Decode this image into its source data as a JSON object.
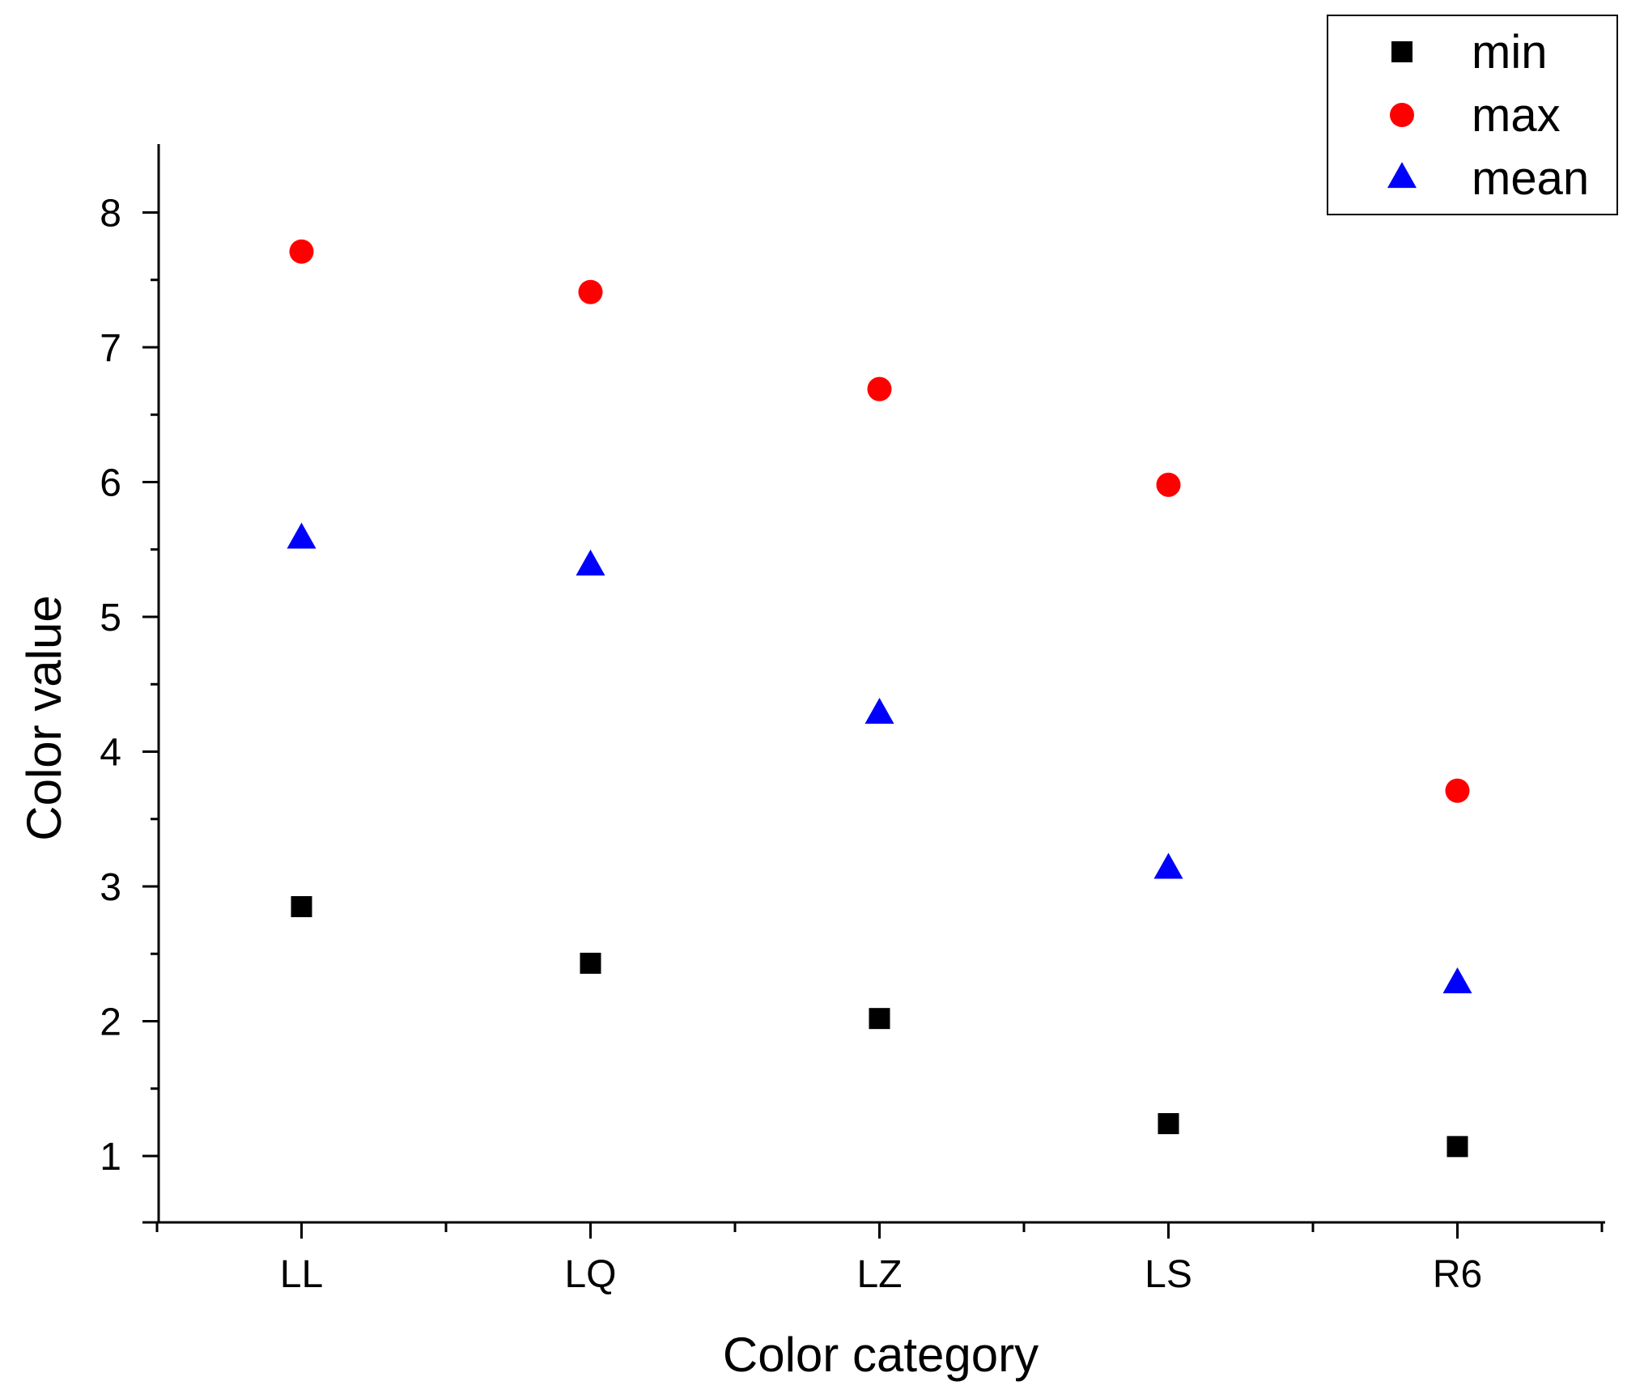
{
  "chart_data": {
    "type": "scatter",
    "categories": [
      "LL",
      "LQ",
      "LZ",
      "LS",
      "R6"
    ],
    "series": [
      {
        "name": "min",
        "marker": "square",
        "color": "#000000",
        "values": [
          2.85,
          2.43,
          2.02,
          1.24,
          1.07
        ]
      },
      {
        "name": "max",
        "marker": "circle",
        "color": "#ff0000",
        "values": [
          7.71,
          7.41,
          6.69,
          5.98,
          3.71
        ]
      },
      {
        "name": "mean",
        "marker": "triangle",
        "color": "#0000ff",
        "values": [
          5.58,
          5.38,
          4.28,
          3.13,
          2.28
        ]
      }
    ],
    "xlabel": "Color category",
    "ylabel": "Color value",
    "ylim": [
      0.5,
      8.5
    ],
    "yticks": [
      1,
      2,
      3,
      4,
      5,
      6,
      7,
      8
    ],
    "grid": false,
    "legend_position": "top-right"
  }
}
